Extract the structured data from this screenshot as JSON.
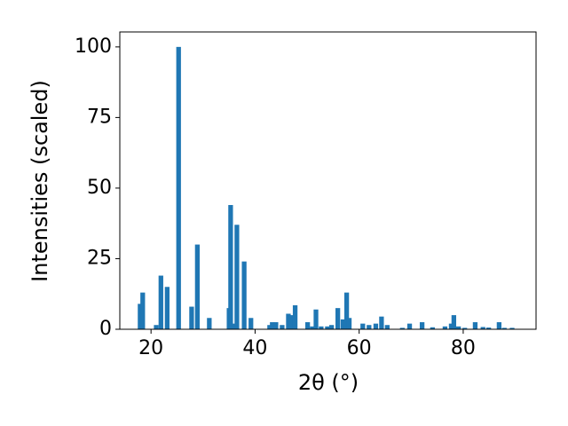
{
  "chart_data": {
    "type": "bar",
    "x": [
      17.9,
      18.4,
      21.0,
      21.9,
      23.1,
      25.3,
      27.8,
      28.9,
      31.2,
      35.0,
      35.3,
      35.8,
      36.5,
      37.9,
      39.2,
      42.8,
      43.3,
      44.0,
      45.2,
      46.4,
      46.9,
      47.7,
      50.1,
      51.0,
      51.7,
      52.7,
      53.9,
      54.7,
      55.9,
      56.9,
      57.6,
      58.1,
      60.7,
      61.9,
      63.2,
      64.3,
      65.4,
      68.3,
      69.7,
      72.1,
      74.1,
      76.5,
      77.7,
      78.2,
      79.1,
      80.3,
      82.3,
      83.8,
      84.9,
      86.9,
      87.9,
      89.4
    ],
    "values": [
      9,
      13,
      1.5,
      19,
      15,
      100,
      8,
      30,
      4,
      7.5,
      44,
      2,
      37,
      24,
      4,
      1.5,
      2.5,
      2.5,
      1.5,
      5.5,
      5,
      8.5,
      2.5,
      1,
      7,
      1,
      1,
      1.5,
      7.5,
      3.5,
      13,
      4,
      2,
      1.5,
      2,
      4.5,
      1.5,
      0.5,
      2,
      2.5,
      0.7,
      1,
      2,
      5,
      1,
      0.5,
      2.5,
      0.8,
      0.6,
      2.5,
      0.5,
      0.5
    ],
    "color": "#1f77b4",
    "xlabel": "2θ (°)",
    "ylabel": "Intensities (scaled)",
    "xlim": [
      14,
      94
    ],
    "ylim": [
      0,
      105.3
    ],
    "xticks": [
      20,
      40,
      60,
      80
    ],
    "yticks": [
      0,
      25,
      50,
      75,
      100
    ]
  }
}
